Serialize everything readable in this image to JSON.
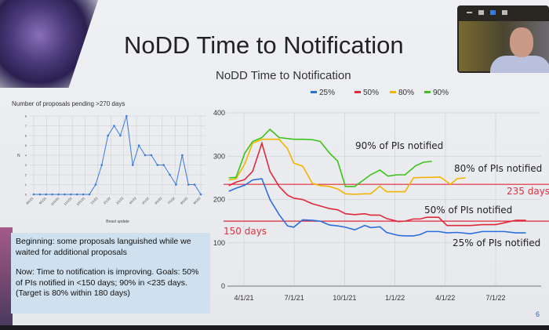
{
  "slide": {
    "title": "NoDD Time to Notification",
    "page_number": "6",
    "note": {
      "para1": "Beginning:  some proposals languished while we waited for additional proposals",
      "para2": "Now:  Time to notification is improving.  Goals: 50% of PIs notified in <150 days; 90% in <235 days.  (Target is 80% within 180 days)"
    }
  },
  "video_controls": [
    "minimize-icon",
    "single-view-icon",
    "speaker-view-icon",
    "gallery-view-icon"
  ],
  "chart_data": [
    {
      "type": "line",
      "title": "Number of proposals pending >270 days",
      "xlabel": "Beast update",
      "ylabel": "N",
      "ylim": [
        0,
        8
      ],
      "yticks": [
        "0",
        "1",
        "2",
        "3",
        "4",
        "5",
        "6",
        "7",
        "8"
      ],
      "xticks": [
        "8/1/21",
        "9/1/21",
        "10/1/21",
        "11/1/21",
        "12/1/21",
        "1/1/22",
        "2/1/22",
        "3/1/22",
        "4/1/22",
        "5/1/22",
        "6/1/22",
        "7/1/22",
        "8/1/22",
        "9/1/22"
      ],
      "values": [
        0,
        0,
        0,
        0,
        0,
        0,
        0,
        0,
        0,
        0,
        1,
        3,
        6,
        7,
        6,
        8,
        3,
        5,
        4,
        4,
        3,
        3,
        2,
        1,
        4,
        1,
        1,
        0
      ],
      "color": "#3a7ad8",
      "grid": true
    },
    {
      "type": "line",
      "title": "NoDD Time to Notification",
      "ylim": [
        0,
        400
      ],
      "yticks": [
        "0",
        "100",
        "200",
        "300",
        "400"
      ],
      "xticks": [
        "4/1/21",
        "7/1/21",
        "10/1/21",
        "1/1/22",
        "4/1/22",
        "7/1/22"
      ],
      "x_unit": "months since 4/1/21",
      "legend_position": "top",
      "series": [
        {
          "name": "25%",
          "color": "#2a6fdc",
          "points": [
            [
              -0.9,
              219
            ],
            [
              -0.47,
              226
            ],
            [
              0.05,
              233
            ],
            [
              0.52,
              245
            ],
            [
              1.07,
              248
            ],
            [
              1.55,
              200
            ],
            [
              2.1,
              165
            ],
            [
              2.6,
              139
            ],
            [
              2.97,
              136
            ],
            [
              3.5,
              153
            ],
            [
              4.08,
              152
            ],
            [
              4.55,
              150
            ],
            [
              5.1,
              141
            ],
            [
              5.6,
              139
            ],
            [
              6.05,
              136
            ],
            [
              6.6,
              130
            ],
            [
              7.2,
              140
            ],
            [
              7.55,
              135
            ],
            [
              8.1,
              137
            ],
            [
              8.5,
              124
            ],
            [
              9.2,
              117
            ],
            [
              9.6,
              116
            ],
            [
              10.1,
              116
            ],
            [
              10.5,
              119
            ],
            [
              10.9,
              126
            ],
            [
              11.6,
              126
            ],
            [
              12.1,
              123
            ],
            [
              12.7,
              124
            ],
            [
              13.5,
              121
            ],
            [
              14.2,
              126
            ],
            [
              15,
              126
            ],
            [
              15.5,
              126
            ],
            [
              16.2,
              123
            ],
            [
              16.8,
              123
            ]
          ]
        },
        {
          "name": "50%",
          "color": "#e0283a",
          "points": [
            [
              -0.9,
              232
            ],
            [
              -0.47,
              240
            ],
            [
              0.05,
              246
            ],
            [
              0.52,
              265
            ],
            [
              1.07,
              330
            ],
            [
              1.55,
              265
            ],
            [
              2.1,
              230
            ],
            [
              2.6,
              210
            ],
            [
              2.97,
              203
            ],
            [
              3.5,
              200
            ],
            [
              4.08,
              190
            ],
            [
              4.55,
              185
            ],
            [
              5.1,
              179
            ],
            [
              5.6,
              176
            ],
            [
              6.05,
              167
            ],
            [
              6.6,
              165
            ],
            [
              7.2,
              167
            ],
            [
              7.55,
              164
            ],
            [
              8.1,
              164
            ],
            [
              8.5,
              156
            ],
            [
              9.2,
              149
            ],
            [
              9.6,
              150
            ],
            [
              10.1,
              155
            ],
            [
              10.5,
              155
            ],
            [
              10.9,
              159
            ],
            [
              11.6,
              159
            ],
            [
              12.1,
              140
            ],
            [
              12.7,
              140
            ],
            [
              13.5,
              140
            ],
            [
              14.2,
              142
            ],
            [
              15,
              142
            ],
            [
              15.5,
              146
            ],
            [
              16.2,
              152
            ],
            [
              16.8,
              152
            ]
          ]
        },
        {
          "name": "80%",
          "color": "#f2b400",
          "points": [
            [
              -0.9,
              245
            ],
            [
              -0.47,
              248
            ],
            [
              0.05,
              282
            ],
            [
              0.52,
              330
            ],
            [
              1.07,
              339
            ],
            [
              1.55,
              339
            ],
            [
              2.1,
              339
            ],
            [
              2.6,
              317
            ],
            [
              2.97,
              284
            ],
            [
              3.5,
              277
            ],
            [
              4.08,
              237
            ],
            [
              4.55,
              232
            ],
            [
              5.1,
              230
            ],
            [
              5.6,
              224
            ],
            [
              6.05,
              213
            ],
            [
              6.6,
              212
            ],
            [
              7.2,
              213
            ],
            [
              7.55,
              213
            ],
            [
              8.1,
              231
            ],
            [
              8.5,
              218
            ],
            [
              9.2,
              218
            ],
            [
              9.6,
              218
            ],
            [
              10.1,
              250
            ],
            [
              10.7,
              251
            ],
            [
              11.2,
              251
            ],
            [
              11.7,
              252
            ],
            [
              12.3,
              235
            ],
            [
              12.7,
              248
            ],
            [
              13.2,
              250
            ]
          ]
        },
        {
          "name": "90%",
          "color": "#3cc21a",
          "points": [
            [
              -0.9,
              250
            ],
            [
              -0.47,
              251
            ],
            [
              0.05,
              307
            ],
            [
              0.52,
              334
            ],
            [
              1.07,
              343
            ],
            [
              1.55,
              362
            ],
            [
              2.1,
              343
            ],
            [
              2.97,
              339
            ],
            [
              3.6,
              339
            ],
            [
              4.08,
              338
            ],
            [
              4.55,
              334
            ],
            [
              5.1,
              307
            ],
            [
              5.58,
              289
            ],
            [
              6.05,
              230
            ],
            [
              6.6,
              230
            ],
            [
              7.55,
              257
            ],
            [
              8.1,
              268
            ],
            [
              8.58,
              254
            ],
            [
              9.13,
              257
            ],
            [
              9.6,
              257
            ],
            [
              10.24,
              278
            ],
            [
              10.7,
              286
            ],
            [
              11.2,
              288
            ]
          ]
        }
      ],
      "reference_lines": [
        {
          "value": 235,
          "label": "235 days",
          "color": "#e0283a"
        },
        {
          "value": 150,
          "label": "150 days",
          "color": "#e0283a"
        }
      ],
      "annotations": [
        "90% of PIs notified",
        "80% of PIs notified",
        "50% of PIs notified",
        "25% of PIs notified"
      ]
    }
  ]
}
